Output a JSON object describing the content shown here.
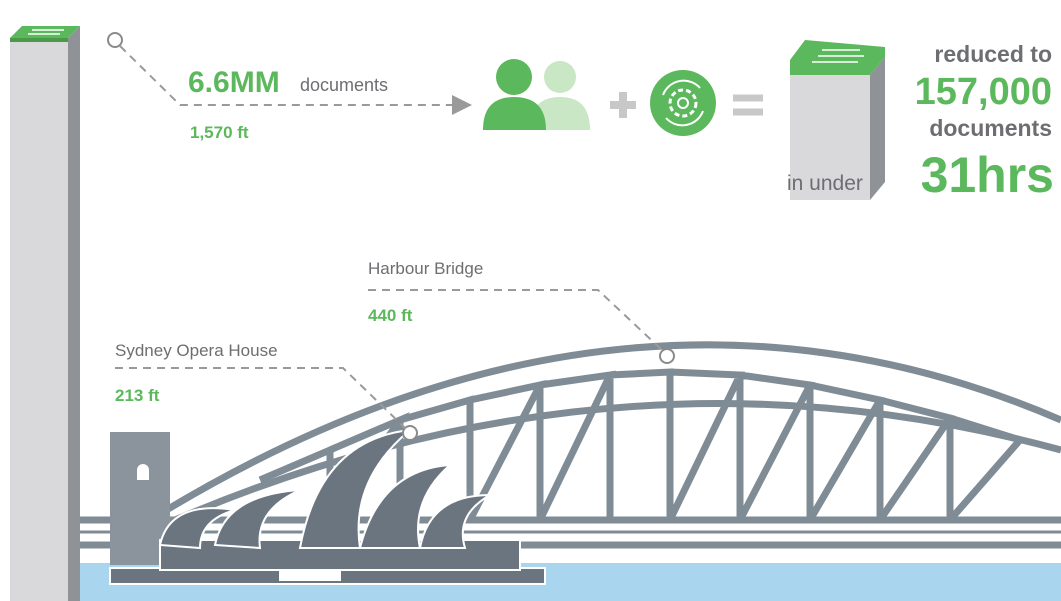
{
  "stack": {
    "amount": "6.6MM",
    "unit": "documents",
    "height": "1,570 ft"
  },
  "result": {
    "lead": "reduced to",
    "amount": "157,000",
    "unit": "documents",
    "time_lead": "in under",
    "time": "31hrs"
  },
  "landmarks": [
    {
      "name": "Harbour Bridge",
      "height": "440 ft"
    },
    {
      "name": "Sydney Opera House",
      "height": "213 ft"
    }
  ]
}
